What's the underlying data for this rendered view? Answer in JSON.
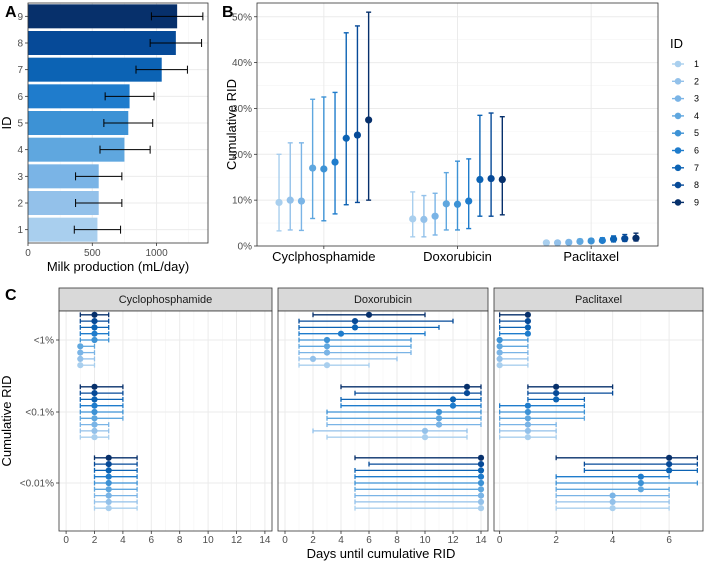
{
  "palette": [
    "#a9cfee",
    "#93c1ea",
    "#7ab4e6",
    "#5fa7df",
    "#3d92d5",
    "#1f7ccc",
    "#0c63b4",
    "#064a98",
    "#07306b"
  ],
  "chart_data": [
    {
      "panel": "A",
      "type": "bar",
      "orientation": "horizontal",
      "xlabel": "Milk production (mL/day)",
      "ylabel": "ID",
      "xlim": [
        0,
        1400
      ],
      "xticks": [
        0,
        500,
        1000
      ],
      "categories": [
        "1",
        "2",
        "3",
        "4",
        "5",
        "6",
        "7",
        "8",
        "9"
      ],
      "values": [
        540,
        550,
        550,
        750,
        780,
        790,
        1040,
        1150,
        1160
      ],
      "error_low": [
        360,
        370,
        370,
        560,
        590,
        600,
        840,
        950,
        960
      ],
      "error_high": [
        720,
        730,
        730,
        950,
        970,
        980,
        1240,
        1350,
        1360
      ]
    },
    {
      "panel": "B",
      "type": "scatter",
      "ylabel": "Cumulative RID",
      "ylim": [
        0,
        0.53
      ],
      "yticks": [
        "0%",
        "10%",
        "20%",
        "30%",
        "40%",
        "50%"
      ],
      "categories": [
        "Cyclphosphamide",
        "Doxorubicin",
        "Paclitaxel"
      ],
      "legend_title": "ID",
      "legend": [
        "1",
        "2",
        "3",
        "4",
        "5",
        "6",
        "7",
        "8",
        "9"
      ],
      "series": [
        {
          "name": "Cyclphosphamide",
          "mean": [
            0.095,
            0.1,
            0.098,
            0.17,
            0.168,
            0.183,
            0.235,
            0.242,
            0.275
          ],
          "low": [
            0.033,
            0.035,
            0.034,
            0.06,
            0.055,
            0.07,
            0.09,
            0.095,
            0.1
          ],
          "high": [
            0.2,
            0.225,
            0.225,
            0.32,
            0.325,
            0.335,
            0.465,
            0.48,
            0.51
          ]
        },
        {
          "name": "Doxorubicin",
          "mean": [
            0.059,
            0.058,
            0.065,
            0.092,
            0.091,
            0.098,
            0.145,
            0.147,
            0.145
          ],
          "low": [
            0.02,
            0.02,
            0.024,
            0.035,
            0.035,
            0.038,
            0.065,
            0.065,
            0.068
          ],
          "high": [
            0.118,
            0.11,
            0.115,
            0.16,
            0.185,
            0.19,
            0.285,
            0.29,
            0.282
          ]
        },
        {
          "name": "Paclitaxel",
          "mean": [
            0.007,
            0.007,
            0.008,
            0.01,
            0.011,
            0.012,
            0.015,
            0.016,
            0.017
          ],
          "low": [
            0.004,
            0.004,
            0.005,
            0.006,
            0.007,
            0.008,
            0.009,
            0.01,
            0.011
          ],
          "high": [
            0.011,
            0.011,
            0.012,
            0.015,
            0.016,
            0.018,
            0.022,
            0.025,
            0.028
          ]
        }
      ]
    },
    {
      "panel": "C",
      "type": "scatter",
      "xlabel": "Days until cumulative RID",
      "ylabel": "Cumulative RID",
      "row_labels": [
        "<1%",
        "<0.1%",
        "<0.01%"
      ],
      "facets": [
        {
          "title": "Cyclophosphamide",
          "xlim": [
            -0.5,
            14.5
          ],
          "xticks": [
            0,
            2,
            4,
            6,
            8,
            10,
            12,
            14
          ],
          "rows": [
            {
              "label": "<1%",
              "mean": [
                1,
                1,
                1,
                1,
                2,
                2,
                2,
                2,
                2
              ],
              "low": [
                1,
                1,
                1,
                1,
                1,
                1,
                1,
                1,
                1
              ],
              "high": [
                2,
                2,
                2,
                2,
                3,
                3,
                3,
                3,
                3
              ]
            },
            {
              "label": "<0.1%",
              "mean": [
                2,
                2,
                2,
                2,
                2,
                2,
                2,
                2,
                2
              ],
              "low": [
                1,
                1,
                1,
                1,
                1,
                1,
                1,
                1,
                1
              ],
              "high": [
                3,
                3,
                3,
                4,
                4,
                4,
                4,
                4,
                4
              ]
            },
            {
              "label": "<0.01%",
              "mean": [
                3,
                3,
                3,
                3,
                3,
                3,
                3,
                3,
                3
              ],
              "low": [
                2,
                2,
                2,
                2,
                2,
                2,
                2,
                2,
                2
              ],
              "high": [
                5,
                5,
                5,
                5,
                5,
                5,
                5,
                5,
                5
              ]
            }
          ]
        },
        {
          "title": "Doxorubicin",
          "xlim": [
            -0.5,
            14.5
          ],
          "xticks": [
            0,
            2,
            4,
            6,
            8,
            10,
            12,
            14
          ],
          "rows": [
            {
              "label": "<1%",
              "mean": [
                3,
                2,
                3,
                3,
                3,
                4,
                5,
                5,
                6
              ],
              "low": [
                1,
                1,
                1,
                1,
                1,
                1,
                1,
                1,
                2
              ],
              "high": [
                6,
                8,
                9,
                9,
                9,
                10,
                11,
                12,
                10
              ]
            },
            {
              "label": "<0.1%",
              "mean": [
                10,
                10,
                11,
                11,
                11,
                12,
                12,
                13,
                13
              ],
              "low": [
                3,
                2,
                3,
                3,
                3,
                4,
                4,
                5,
                4
              ],
              "high": [
                13,
                13,
                14,
                14,
                14,
                14,
                14,
                14,
                14
              ]
            },
            {
              "label": "<0.01%",
              "mean": [
                14,
                14,
                14,
                14,
                14,
                14,
                14,
                14,
                14
              ],
              "low": [
                5,
                5,
                5,
                5,
                5,
                5,
                5,
                6,
                5
              ],
              "high": [
                14,
                14,
                14,
                14,
                14,
                14,
                14,
                14,
                14
              ]
            }
          ]
        },
        {
          "title": "Paclitaxel",
          "xlim": [
            -0.2,
            7.2
          ],
          "xticks": [
            0,
            2,
            4,
            6
          ],
          "rows": [
            {
              "label": "<1%",
              "mean": [
                0,
                0,
                0,
                0,
                0,
                1,
                1,
                1,
                1
              ],
              "low": [
                0,
                0,
                0,
                0,
                0,
                0,
                0,
                0,
                0
              ],
              "high": [
                1,
                1,
                1,
                1,
                1,
                1,
                1,
                1,
                1
              ]
            },
            {
              "label": "<0.1%",
              "mean": [
                1,
                1,
                1,
                1,
                1,
                1,
                2,
                2,
                2
              ],
              "low": [
                0,
                0,
                0,
                0,
                0,
                0,
                1,
                1,
                1
              ],
              "high": [
                2,
                2,
                2,
                3,
                3,
                3,
                3,
                4,
                4
              ]
            },
            {
              "label": "<0.01%",
              "mean": [
                4,
                4,
                4,
                5,
                5,
                5,
                6,
                6,
                6
              ],
              "low": [
                2,
                2,
                2,
                2,
                2,
                2,
                3,
                3,
                2
              ],
              "high": [
                6,
                6,
                6,
                6,
                7,
                6,
                7,
                7,
                7
              ]
            }
          ]
        }
      ]
    }
  ]
}
